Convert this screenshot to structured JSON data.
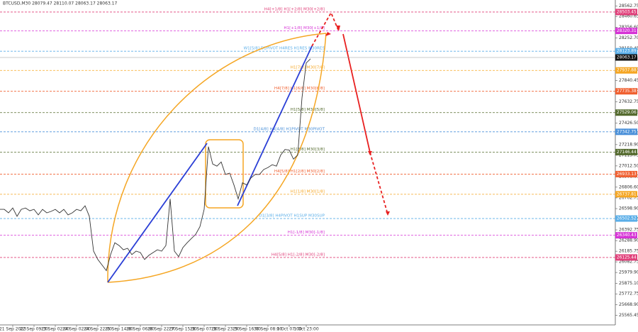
{
  "chart_data": {
    "type": "line",
    "title": "BTCUSD,M30  28079.47 28110.07 28063.17 28063.17",
    "color": "#333333",
    "xlim": [
      0,
      144
    ],
    "xticks": [
      {
        "value": 3,
        "label": "21 Sep 2023"
      },
      {
        "value": 8,
        "label": "22 Sep 09:30"
      },
      {
        "value": 13,
        "label": "23 Sep 02:00"
      },
      {
        "value": 18,
        "label": "24 Sep 02:00"
      },
      {
        "value": 23,
        "label": "24 Sep 22:00"
      },
      {
        "value": 28,
        "label": "25 Sep 14:00"
      },
      {
        "value": 33,
        "label": "26 Sep 06:00"
      },
      {
        "value": 38,
        "label": "26 Sep 22:30"
      },
      {
        "value": 43,
        "label": "27 Sep 15:30"
      },
      {
        "value": 48,
        "label": "28 Sep 07:30"
      },
      {
        "value": 53,
        "label": "28 Sep 23:30"
      },
      {
        "value": 58,
        "label": "29 Sep 16:00"
      },
      {
        "value": 63,
        "label": "30 Sep 08:00"
      },
      {
        "value": 68,
        "label": "1 Oct 07:00"
      },
      {
        "value": 72,
        "label": "1 Oct 23:00"
      }
    ],
    "ylim": [
      25472,
      28620
    ],
    "yticks": [
      28562.75,
      28460.65,
      {
        "value": 28356.6,
        "label": "28356.60"
      },
      {
        "value": 28252.7,
        "label": "28252.70"
      },
      28150.45,
      28047.35,
      27944.25,
      27840.45,
      {
        "value": 27737.3,
        "label": "27737.30"
      },
      27632.75,
      27529.65,
      {
        "value": 27426.5,
        "label": "27426.50"
      },
      27322.75,
      {
        "value": 27218.9,
        "label": "27218.90"
      },
      27115.75,
      {
        "value": 27012.5,
        "label": "27012.50"
      },
      {
        "value": 26908.6,
        "label": "26908.60"
      },
      {
        "value": 26806.6,
        "label": "26806.60"
      },
      26702.75,
      {
        "value": 26598.9,
        "label": "26598.90"
      },
      26495.75,
      26392.75,
      {
        "value": 26288.9,
        "label": "26288.90"
      },
      26185.75,
      26082.75,
      {
        "value": 25979.9,
        "label": "25979.90"
      },
      {
        "value": 25875.1,
        "label": "25875.10"
      },
      25772.75,
      {
        "value": 25668.9,
        "label": "25668.90"
      },
      25565.45
    ],
    "grid": false,
    "values": [
      26592,
      26592,
      26558,
      26605,
      26524,
      26592,
      26605,
      26578,
      26592,
      26538,
      26592,
      26558,
      26572,
      26592,
      26558,
      26592,
      26538,
      26558,
      26592,
      26578,
      26626,
      26524,
      26187,
      26106,
      26052,
      25998,
      26153,
      26268,
      26241,
      26200,
      26214,
      26153,
      26187,
      26173,
      26106,
      26146,
      26173,
      26200,
      26187,
      26241,
      26693,
      26187,
      26133,
      26221,
      26268,
      26309,
      26349,
      26423,
      26592,
      27199,
      27031,
      27010,
      27051,
      26930,
      26943,
      26828,
      26693,
      26849,
      26828,
      26896,
      26930,
      26930,
      26977,
      26997,
      27024,
      27010,
      27118,
      27172,
      27166,
      27078,
      27118,
      27672,
      28010,
      28050
    ],
    "current_price": 28063.17,
    "levels": [
      {
        "label": "H4[+1/8] H1[+2/8] M30[+2/8]",
        "value": 28503.45,
        "color": "#e0407a"
      },
      {
        "label": "H1[+1/8] M30[+1/8]",
        "value": 28320.31,
        "color": "#d633d6"
      },
      {
        "label": "W1[5/8] D1PIVOT H4RES H1RES M30RES",
        "value": 28123.89,
        "color": "#5aaee8"
      },
      {
        "label": "H1[7/8] M30[7/8]",
        "value": 27937.88,
        "color": "#f5a623"
      },
      {
        "label": "H4[7/8] H1[6/8] M30[6/8]",
        "value": 27735.38,
        "color": "#f06030"
      },
      {
        "label": "H1[5/8] M30[5/8]",
        "value": 27529.06,
        "color": "#556b2f"
      },
      {
        "label": "D1[4/8] H4[4/8] H1PIVOT M30PIVOT",
        "value": 27342.75,
        "color": "#4a90d9"
      },
      {
        "label": "H1[3/8] M30[3/8]",
        "value": 27146.44,
        "color": "#556b2f"
      },
      {
        "label": "H4[5/8] H1[2/8] M30[2/8]",
        "value": 26933.13,
        "color": "#f06030"
      },
      {
        "label": "H1[1/8] M30[1/8]",
        "value": 26737.81,
        "color": "#f5a623"
      },
      {
        "label": "D1[3/8] H4PIVOT H1SUP M30SUP",
        "value": 26502.52,
        "color": "#5aaee8"
      },
      {
        "label": "H1[-1/8] M30[-1/8]",
        "value": 26340.43,
        "color": "#d633d6"
      },
      {
        "label": "H4[5/8] H1[-2/8] M30[-2/8]",
        "value": 26125.44,
        "color": "#e0407a"
      }
    ]
  }
}
